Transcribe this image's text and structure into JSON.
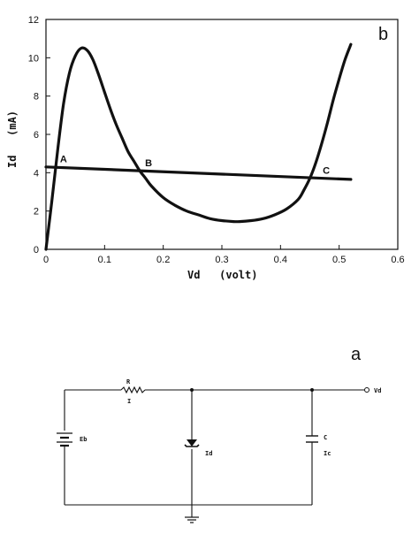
{
  "panel_b": {
    "label": "b",
    "xlabel": "Vd   (volt)",
    "ylabel": "Id   (mA)",
    "point_labels": [
      "A",
      "B",
      "C"
    ]
  },
  "chart_data": {
    "type": "line",
    "xlim": [
      0,
      0.6
    ],
    "ylim": [
      0,
      12
    ],
    "x_ticks": [
      "0",
      "0.1",
      "0.2",
      "0.3",
      "0.4",
      "0.5",
      "0.6"
    ],
    "y_ticks": [
      "0",
      "2",
      "4",
      "6",
      "8",
      "10",
      "12"
    ],
    "xlabel": "Vd   (volt)",
    "ylabel": "Id   (mA)",
    "grid": false,
    "series": [
      {
        "values_x": [
          0,
          0.01,
          0.02,
          0.03,
          0.04,
          0.05,
          0.06,
          0.07,
          0.08,
          0.09,
          0.1,
          0.11,
          0.12,
          0.13,
          0.14,
          0.15,
          0.16,
          0.17,
          0.18,
          0.2,
          0.22,
          0.24,
          0.26,
          0.28,
          0.3,
          0.32,
          0.33,
          0.35,
          0.37,
          0.39,
          0.41,
          0.43,
          0.44,
          0.45,
          0.46,
          0.47,
          0.48,
          0.49,
          0.5,
          0.51,
          0.52
        ],
        "values_y": [
          0,
          2.5,
          5.2,
          7.6,
          9.2,
          10.1,
          10.5,
          10.4,
          9.9,
          9.1,
          8.2,
          7.3,
          6.5,
          5.8,
          5.1,
          4.6,
          4.1,
          3.7,
          3.3,
          2.7,
          2.3,
          2.0,
          1.8,
          1.6,
          1.5,
          1.45,
          1.45,
          1.5,
          1.6,
          1.8,
          2.1,
          2.6,
          3.1,
          3.7,
          4.5,
          5.5,
          6.6,
          7.8,
          8.9,
          9.9,
          10.7
        ]
      },
      {
        "values_x": [
          0,
          0.52
        ],
        "values_y": [
          4.3,
          3.65
        ]
      }
    ],
    "annotations": [
      {
        "text": "A",
        "x": 0.03,
        "y": 4.55
      },
      {
        "text": "B",
        "x": 0.175,
        "y": 4.35
      },
      {
        "text": "C",
        "x": 0.478,
        "y": 3.95
      }
    ]
  },
  "panel_a": {
    "label": "a",
    "labels": {
      "resistor": "R",
      "current": "I",
      "battery": "Eb",
      "diode_current": "Id",
      "capacitor": "C",
      "cap_current": "Ic",
      "output": "Vd"
    }
  }
}
